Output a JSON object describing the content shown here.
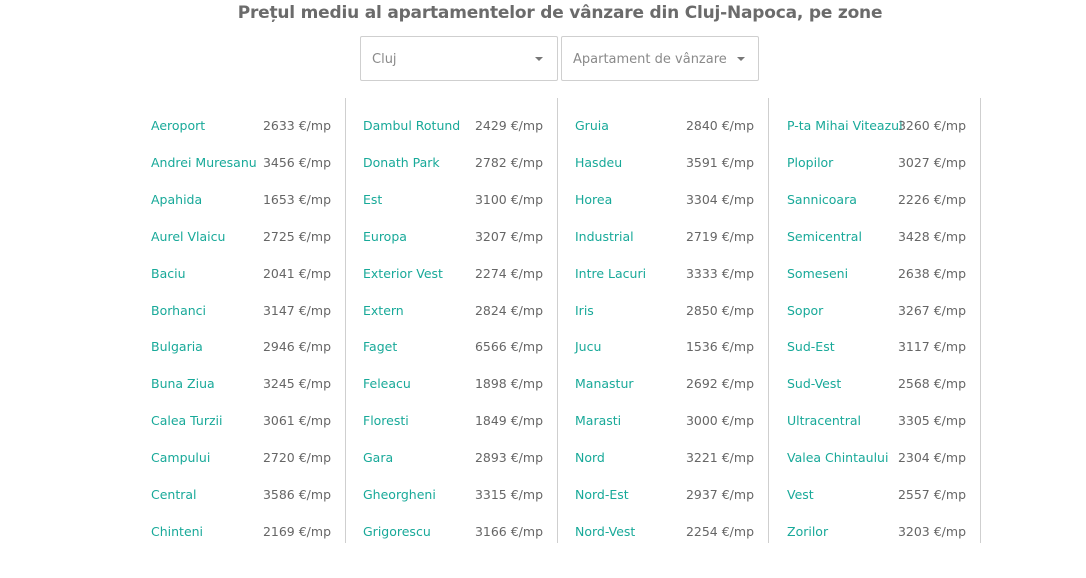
{
  "title": "Prețul mediu al apartamentelor de vânzare din Cluj-Napoca, pe zone",
  "filters": {
    "city": "Cluj",
    "type": "Apartament de vânzare"
  },
  "columns": [
    [
      {
        "name": "Aeroport",
        "price": "2633 €/mp"
      },
      {
        "name": "Andrei Muresanu",
        "price": "3456 €/mp"
      },
      {
        "name": "Apahida",
        "price": "1653 €/mp"
      },
      {
        "name": "Aurel Vlaicu",
        "price": "2725 €/mp"
      },
      {
        "name": "Baciu",
        "price": "2041 €/mp"
      },
      {
        "name": "Borhanci",
        "price": "3147 €/mp"
      },
      {
        "name": "Bulgaria",
        "price": "2946 €/mp"
      },
      {
        "name": "Buna Ziua",
        "price": "3245 €/mp"
      },
      {
        "name": "Calea Turzii",
        "price": "3061 €/mp"
      },
      {
        "name": "Campului",
        "price": "2720 €/mp"
      },
      {
        "name": "Central",
        "price": "3586 €/mp"
      },
      {
        "name": "Chinteni",
        "price": "2169 €/mp"
      }
    ],
    [
      {
        "name": "Dambul Rotund",
        "price": "2429 €/mp"
      },
      {
        "name": "Donath Park",
        "price": "2782 €/mp"
      },
      {
        "name": "Est",
        "price": "3100 €/mp"
      },
      {
        "name": "Europa",
        "price": "3207 €/mp"
      },
      {
        "name": "Exterior Vest",
        "price": "2274 €/mp"
      },
      {
        "name": "Extern",
        "price": "2824 €/mp"
      },
      {
        "name": "Faget",
        "price": "6566 €/mp"
      },
      {
        "name": "Feleacu",
        "price": "1898 €/mp"
      },
      {
        "name": "Floresti",
        "price": "1849 €/mp"
      },
      {
        "name": "Gara",
        "price": "2893 €/mp"
      },
      {
        "name": "Gheorgheni",
        "price": "3315 €/mp"
      },
      {
        "name": "Grigorescu",
        "price": "3166 €/mp"
      }
    ],
    [
      {
        "name": "Gruia",
        "price": "2840 €/mp"
      },
      {
        "name": "Hasdeu",
        "price": "3591 €/mp"
      },
      {
        "name": "Horea",
        "price": "3304 €/mp"
      },
      {
        "name": "Industrial",
        "price": "2719 €/mp"
      },
      {
        "name": "Intre Lacuri",
        "price": "3333 €/mp"
      },
      {
        "name": "Iris",
        "price": "2850 €/mp"
      },
      {
        "name": "Jucu",
        "price": "1536 €/mp"
      },
      {
        "name": "Manastur",
        "price": "2692 €/mp"
      },
      {
        "name": "Marasti",
        "price": "3000 €/mp"
      },
      {
        "name": "Nord",
        "price": "3221 €/mp"
      },
      {
        "name": "Nord-Est",
        "price": "2937 €/mp"
      },
      {
        "name": "Nord-Vest",
        "price": "2254 €/mp"
      }
    ],
    [
      {
        "name": "P-ta Mihai Viteazul",
        "price": "3260 €/mp"
      },
      {
        "name": "Plopilor",
        "price": "3027 €/mp"
      },
      {
        "name": "Sannicoara",
        "price": "2226 €/mp"
      },
      {
        "name": "Semicentral",
        "price": "3428 €/mp"
      },
      {
        "name": "Someseni",
        "price": "2638 €/mp"
      },
      {
        "name": "Sopor",
        "price": "3267 €/mp"
      },
      {
        "name": "Sud-Est",
        "price": "3117 €/mp"
      },
      {
        "name": "Sud-Vest",
        "price": "2568 €/mp"
      },
      {
        "name": "Ultracentral",
        "price": "3305 €/mp"
      },
      {
        "name": "Valea Chintaului",
        "price": "2304 €/mp"
      },
      {
        "name": "Vest",
        "price": "2557 €/mp"
      },
      {
        "name": "Zorilor",
        "price": "3203 €/mp"
      }
    ]
  ],
  "colors": {
    "link": "#18a999",
    "price": "#666666",
    "title": "#6b6b6b",
    "border": "#cfcfcf"
  },
  "icons": {
    "select_caret": "caret-down-icon"
  }
}
